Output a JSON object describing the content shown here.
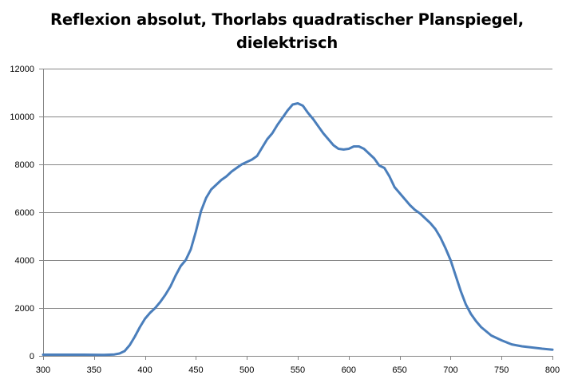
{
  "chart_data": {
    "type": "line",
    "title_lines": [
      "Reflexion absolut, Thorlabs quadratischer Planspiegel,",
      "dielektrisch"
    ],
    "xlabel": "",
    "ylabel": "",
    "xlim": [
      300,
      800
    ],
    "ylim": [
      0,
      12000
    ],
    "xticks": [
      300,
      350,
      400,
      450,
      500,
      550,
      600,
      650,
      700,
      750,
      800
    ],
    "yticks": [
      0,
      2000,
      4000,
      6000,
      8000,
      10000,
      12000
    ],
    "grid": "horizontal",
    "legend": "none",
    "series": [
      {
        "color": "#4A7EBB",
        "x": [
          300,
          320,
          340,
          360,
          370,
          375,
          380,
          385,
          390,
          395,
          400,
          405,
          410,
          415,
          420,
          425,
          430,
          435,
          440,
          445,
          450,
          455,
          460,
          465,
          470,
          475,
          480,
          485,
          490,
          495,
          500,
          505,
          510,
          515,
          520,
          525,
          530,
          535,
          540,
          545,
          550,
          555,
          560,
          565,
          570,
          575,
          580,
          585,
          590,
          595,
          600,
          605,
          610,
          615,
          620,
          625,
          630,
          635,
          640,
          645,
          650,
          655,
          660,
          665,
          670,
          675,
          680,
          685,
          690,
          695,
          700,
          705,
          710,
          715,
          720,
          725,
          730,
          740,
          750,
          760,
          770,
          780,
          790,
          800
        ],
        "y": [
          50,
          50,
          50,
          40,
          60,
          100,
          200,
          450,
          800,
          1200,
          1550,
          1800,
          2000,
          2250,
          2550,
          2900,
          3350,
          3750,
          4000,
          4450,
          5200,
          6050,
          6600,
          6950,
          7150,
          7350,
          7500,
          7700,
          7850,
          8000,
          8100,
          8200,
          8350,
          8700,
          9050,
          9300,
          9650,
          9950,
          10250,
          10500,
          10550,
          10450,
          10150,
          9900,
          9600,
          9300,
          9050,
          8800,
          8650,
          8620,
          8650,
          8750,
          8750,
          8650,
          8450,
          8250,
          7950,
          7850,
          7500,
          7050,
          6800,
          6550,
          6300,
          6100,
          5950,
          5750,
          5550,
          5300,
          4950,
          4500,
          4000,
          3350,
          2700,
          2150,
          1750,
          1450,
          1200,
          850,
          650,
          480,
          400,
          350,
          300,
          260
        ]
      }
    ]
  }
}
